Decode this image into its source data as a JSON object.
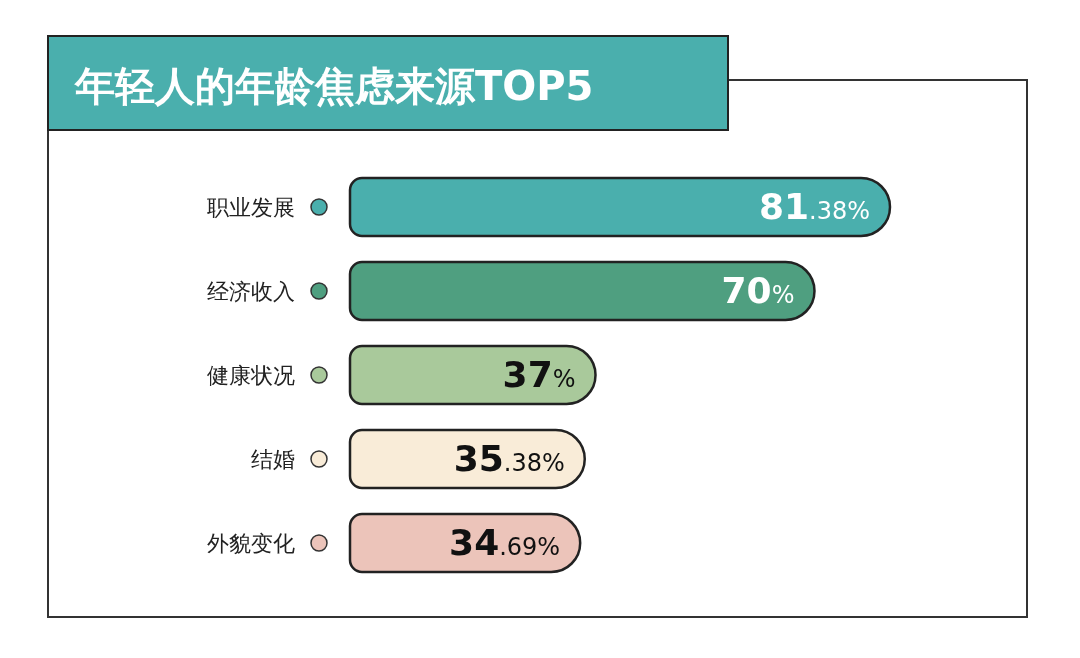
{
  "chart_data": {
    "type": "bar",
    "orientation": "horizontal",
    "title": "年轻人的年龄焦虑来源TOP5",
    "categories": [
      "职业发展",
      "经济收入",
      "健康状况",
      "结婚",
      "外貌变化"
    ],
    "values": [
      81.38,
      70,
      37,
      35.38,
      34.69
    ],
    "colors": [
      "#4aafad",
      "#4f9f80",
      "#a9c99b",
      "#f9ecd8",
      "#ecc4ba"
    ],
    "value_labels": [
      "81.38%",
      "70%",
      "37%",
      "35.38%",
      "34.69%"
    ]
  }
}
